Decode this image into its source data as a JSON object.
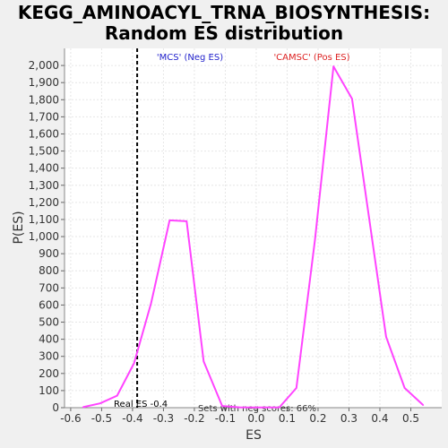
{
  "chart_data": {
    "type": "line",
    "title": [
      "KEGG_AMINOACYL_TRNA_BIOSYNTHESIS:",
      "Random ES distribution"
    ],
    "xlabel": "ES",
    "ylabel": "P(ES)",
    "xlim": [
      -0.62,
      0.6
    ],
    "ylim": [
      0,
      2100
    ],
    "x_ticks": [
      -0.6,
      -0.5,
      -0.4,
      -0.3,
      -0.2,
      -0.1,
      0.0,
      0.1,
      0.2,
      0.3,
      0.4,
      0.5
    ],
    "x_tick_labels": [
      "-0.6",
      "-0.5",
      "-0.4",
      "-0.3",
      "-0.2",
      "-0.1",
      "0.0",
      "0.1",
      "0.2",
      "0.3",
      "0.4",
      "0.5"
    ],
    "y_ticks": [
      0,
      100,
      200,
      300,
      400,
      500,
      600,
      700,
      800,
      900,
      1000,
      1100,
      1200,
      1300,
      1400,
      1500,
      1600,
      1700,
      1800,
      1900,
      2000
    ],
    "y_tick_labels": [
      "0",
      "100",
      "200",
      "300",
      "400",
      "500",
      "600",
      "700",
      "800",
      "900",
      "1,000",
      "1,100",
      "1,200",
      "1,300",
      "1,400",
      "1,500",
      "1,600",
      "1,700",
      "1,800",
      "1,900",
      "2,000"
    ],
    "grid": true,
    "series": [
      {
        "color": "#ff44ff",
        "x": [
          -0.56,
          -0.505,
          -0.45,
          -0.395,
          -0.34,
          -0.28,
          -0.225,
          -0.17,
          -0.11,
          -0.055,
          0.0,
          0.075,
          0.13,
          0.19,
          0.25,
          0.31,
          0.365,
          0.42,
          0.48,
          0.54
        ],
        "y": [
          3,
          25,
          70,
          260,
          610,
          1095,
          1090,
          270,
          10,
          2,
          1,
          2,
          115,
          980,
          1995,
          1805,
          1110,
          415,
          115,
          15
        ]
      }
    ],
    "real_es": {
      "x": -0.385,
      "label": "Real ES -0.4"
    },
    "annotations": {
      "neg_label": "'MCS' (Neg ES)",
      "neg_color": "#2222cc",
      "pos_label": "'CAMSC' (Pos ES)",
      "pos_color": "#dd2222",
      "bottom_text": "Sets with neg scores: 66%"
    },
    "colors": {
      "plot_background": "#ffffff",
      "page_background": "#f0f0f0",
      "grid": "#e6e6e6"
    }
  }
}
